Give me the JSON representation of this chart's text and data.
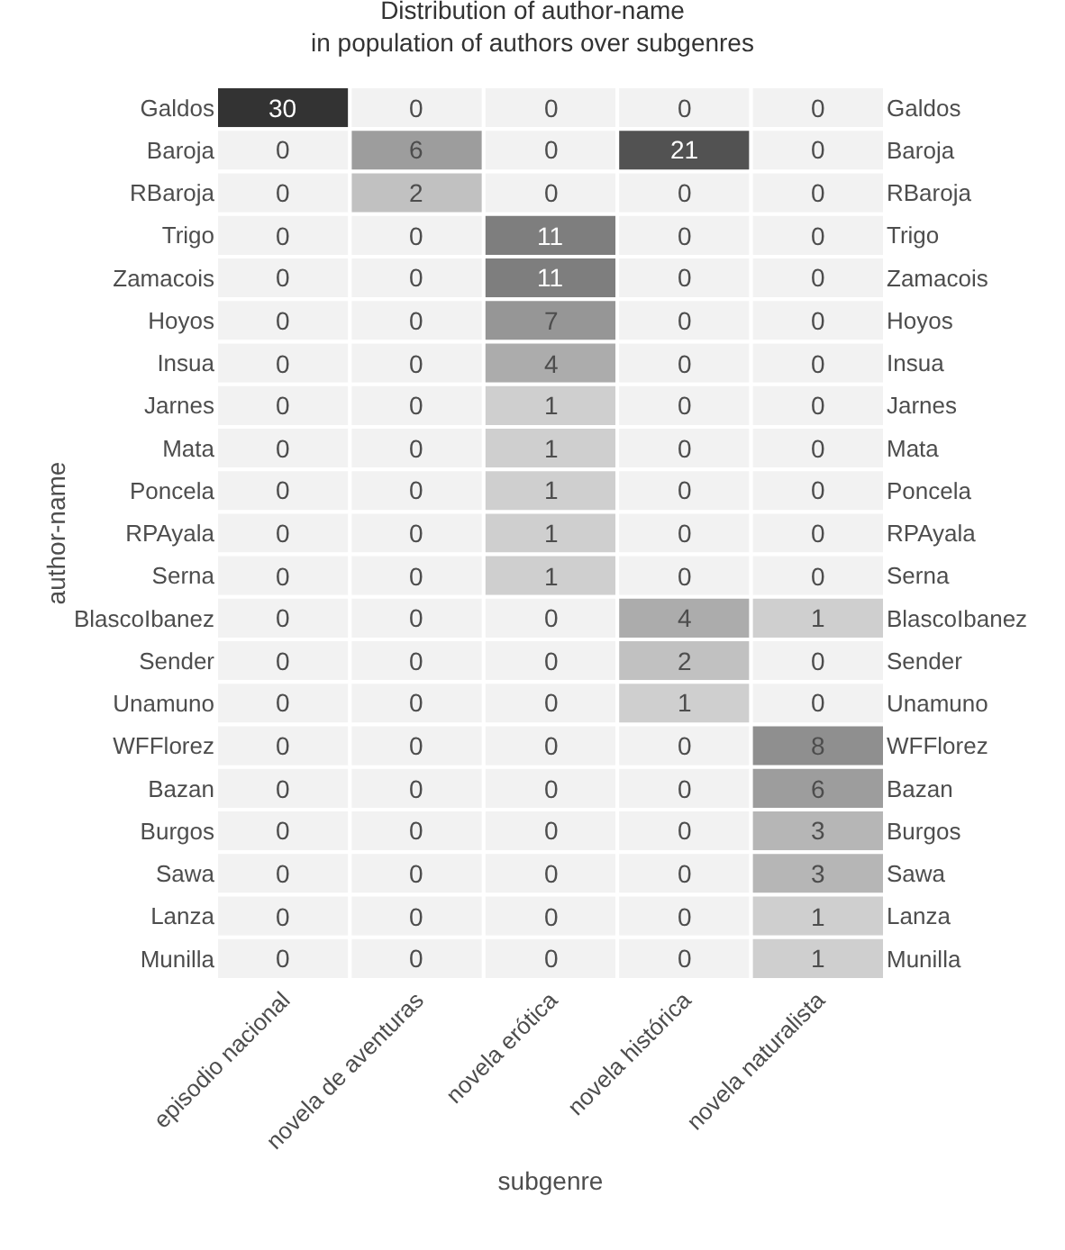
{
  "chart_data": {
    "type": "heatmap",
    "title": "Distribution of author-name\nin population of authors over subgenres",
    "xlabel": "subgenre",
    "ylabel": "author-name",
    "categories": [
      "episodio nacional",
      "novela de aventuras",
      "novela erótica",
      "novela histórica",
      "novela naturalista"
    ],
    "y_categories": [
      "Galdos",
      "Baroja",
      "RBaroja",
      "Trigo",
      "Zamacois",
      "Hoyos",
      "Insua",
      "Jarnes",
      "Mata",
      "Poncela",
      "RPAyala",
      "Serna",
      "BlascoIbanez",
      "Sender",
      "Unamuno",
      "WFFlorez",
      "Bazan",
      "Burgos",
      "Sawa",
      "Lanza",
      "Munilla"
    ],
    "y2_categories": [
      "Galdos",
      "Baroja",
      "RBaroja",
      "Trigo",
      "Zamacois",
      "Hoyos",
      "Insua",
      "Jarnes",
      "Mata",
      "Poncela",
      "RPAyala",
      "Serna",
      "BlascoIbanez",
      "Sender",
      "Unamuno",
      "WFFlorez",
      "Bazan",
      "Burgos",
      "Sawa",
      "Lanza",
      "Munilla"
    ],
    "cells": [
      [
        30,
        0,
        0,
        0,
        0
      ],
      [
        0,
        6,
        0,
        21,
        0
      ],
      [
        0,
        2,
        0,
        0,
        0
      ],
      [
        0,
        0,
        11,
        0,
        0
      ],
      [
        0,
        0,
        11,
        0,
        0
      ],
      [
        0,
        0,
        7,
        0,
        0
      ],
      [
        0,
        0,
        4,
        0,
        0
      ],
      [
        0,
        0,
        1,
        0,
        0
      ],
      [
        0,
        0,
        1,
        0,
        0
      ],
      [
        0,
        0,
        1,
        0,
        0
      ],
      [
        0,
        0,
        1,
        0,
        0
      ],
      [
        0,
        0,
        1,
        0,
        0
      ],
      [
        0,
        0,
        0,
        4,
        1
      ],
      [
        0,
        0,
        0,
        2,
        0
      ],
      [
        0,
        0,
        0,
        1,
        0
      ],
      [
        0,
        0,
        0,
        0,
        8
      ],
      [
        0,
        0,
        0,
        0,
        6
      ],
      [
        0,
        0,
        0,
        0,
        3
      ],
      [
        0,
        0,
        0,
        0,
        3
      ],
      [
        0,
        0,
        0,
        0,
        1
      ],
      [
        0,
        0,
        0,
        0,
        1
      ]
    ],
    "data_labels": true
  }
}
